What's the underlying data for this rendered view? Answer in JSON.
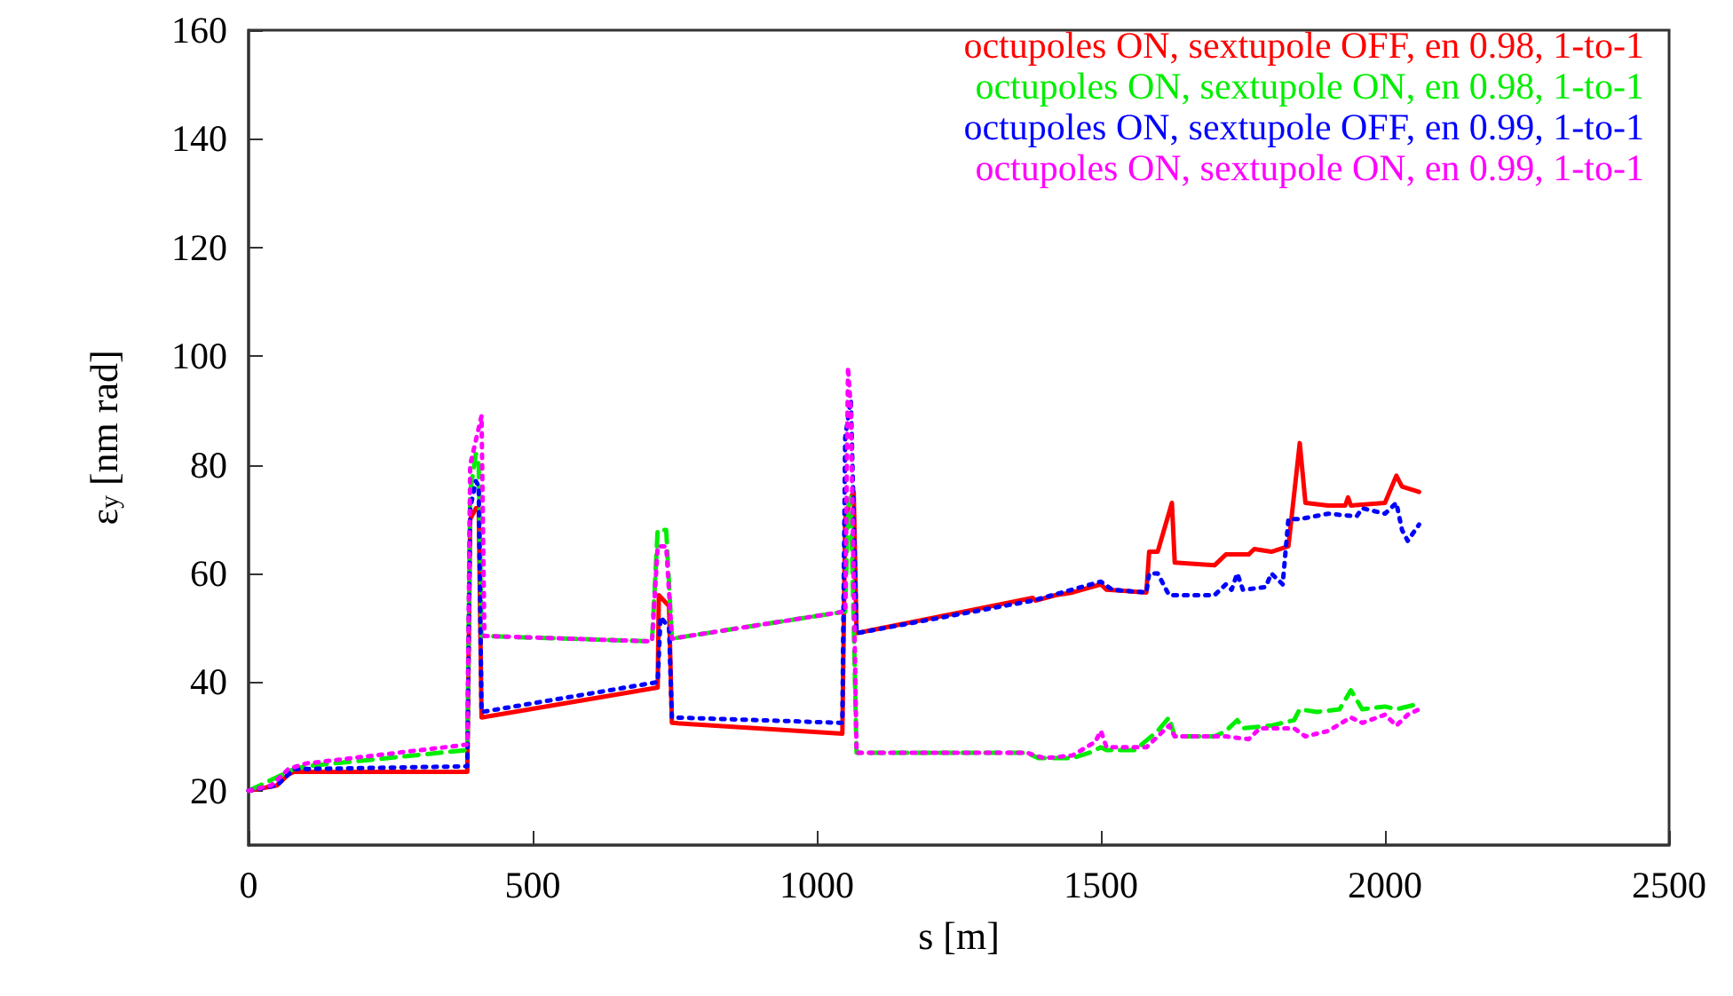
{
  "chart_data": {
    "type": "line",
    "xlabel": "s [m]",
    "ylabel": "ε$_{y}$ [nm rad]",
    "xlim": [
      0,
      2500
    ],
    "xticks": [
      0,
      500,
      1000,
      1500,
      2000,
      2500
    ],
    "ylim": [
      10,
      160
    ],
    "yticks": [
      20,
      40,
      60,
      80,
      100,
      120,
      140,
      160
    ],
    "grid": false,
    "legend": "top right",
    "marker": "none",
    "series": [
      {
        "name": "octupoles ON, sextupole OFF, en 0.98, 1-to-1",
        "color": "#ff0000",
        "line_style": "solid",
        "x": [
          0,
          50,
          70,
          80,
          385,
          390,
          400,
          405,
          410,
          720,
          722,
          740,
          745,
          1045,
          1050,
          1060,
          1065,
          1070,
          1380,
          1385,
          1420,
          1450,
          1500,
          1510,
          1580,
          1585,
          1600,
          1625,
          1630,
          1700,
          1720,
          1760,
          1770,
          1800,
          1830,
          1850,
          1860,
          1900,
          1930,
          1935,
          1940,
          2000,
          2020,
          2030,
          2060
        ],
        "values": [
          20,
          21,
          23,
          23.5,
          23.5,
          70,
          72,
          72,
          33.5,
          39,
          56,
          54,
          32.5,
          30.5,
          70,
          74,
          75,
          49,
          55.5,
          55,
          56,
          56.5,
          58,
          57,
          56.5,
          64,
          64,
          73,
          62,
          61.5,
          63.5,
          63.5,
          64.5,
          64,
          65,
          84,
          73,
          72.5,
          72.5,
          74,
          72.5,
          73,
          78,
          76,
          75
        ]
      },
      {
        "name": "octupoles ON, sextupole ON, en 0.98, 1-to-1",
        "color": "#00ee00",
        "line_style": "dashed",
        "x": [
          0,
          40,
          80,
          100,
          385,
          390,
          400,
          405,
          410,
          710,
          720,
          735,
          745,
          1050,
          1055,
          1060,
          1070,
          1370,
          1390,
          1450,
          1480,
          1500,
          1510,
          1560,
          1600,
          1620,
          1630,
          1700,
          1720,
          1740,
          1750,
          1800,
          1840,
          1850,
          1880,
          1920,
          1940,
          1960,
          2000,
          2020,
          2060
        ],
        "values": [
          20,
          22,
          24,
          24.5,
          27.5,
          75,
          82,
          80,
          48.5,
          47.5,
          68,
          68,
          48,
          53,
          72,
          74,
          27,
          27,
          26,
          26,
          27,
          28,
          27.5,
          27.5,
          31,
          33.5,
          30,
          30,
          31,
          33,
          31.5,
          32,
          33,
          35,
          34.5,
          35,
          38.5,
          35,
          35.5,
          35,
          36
        ]
      },
      {
        "name": "octupoles ON, sextupole OFF, en 0.99, 1-to-1",
        "color": "#0000ff",
        "line_style": "dotted",
        "x": [
          0,
          50,
          80,
          100,
          385,
          390,
          400,
          405,
          410,
          720,
          725,
          740,
          745,
          1045,
          1050,
          1060,
          1070,
          1380,
          1500,
          1520,
          1580,
          1585,
          1600,
          1620,
          1700,
          1720,
          1730,
          1740,
          1750,
          1790,
          1800,
          1820,
          1830,
          1850,
          1900,
          1950,
          1960,
          2000,
          2020,
          2030,
          2040,
          2060
        ],
        "values": [
          20,
          21,
          24,
          24,
          24.5,
          72,
          77,
          76,
          34.5,
          40,
          52,
          50,
          33.5,
          32.5,
          85,
          92,
          49,
          55,
          58.5,
          57,
          56.5,
          60,
          60,
          56,
          56,
          58,
          57,
          60,
          57,
          57.5,
          60,
          58,
          70,
          70,
          71,
          70.5,
          72,
          71,
          73,
          68,
          66,
          69
        ]
      },
      {
        "name": "octupoles ON, sextupole ON, en 0.99, 1-to-1",
        "color": "#ff00ff",
        "line_style": "dotted",
        "x": [
          0,
          40,
          70,
          100,
          385,
          390,
          410,
          415,
          710,
          720,
          735,
          745,
          1050,
          1055,
          1060,
          1070,
          1370,
          1400,
          1450,
          1490,
          1500,
          1510,
          1580,
          1620,
          1630,
          1700,
          1720,
          1760,
          1780,
          1840,
          1860,
          1880,
          1900,
          1940,
          1960,
          2000,
          2020,
          2040,
          2060
        ],
        "values": [
          20,
          21,
          24,
          25,
          28.5,
          80,
          89,
          48.5,
          47.5,
          65,
          65,
          48,
          53,
          98,
          90,
          27,
          27,
          26,
          26.5,
          29,
          31,
          28,
          28,
          32,
          30,
          30,
          30,
          29.5,
          31.5,
          31.5,
          30,
          30.5,
          31,
          33.5,
          32.5,
          34,
          32,
          34,
          35
        ]
      }
    ]
  }
}
